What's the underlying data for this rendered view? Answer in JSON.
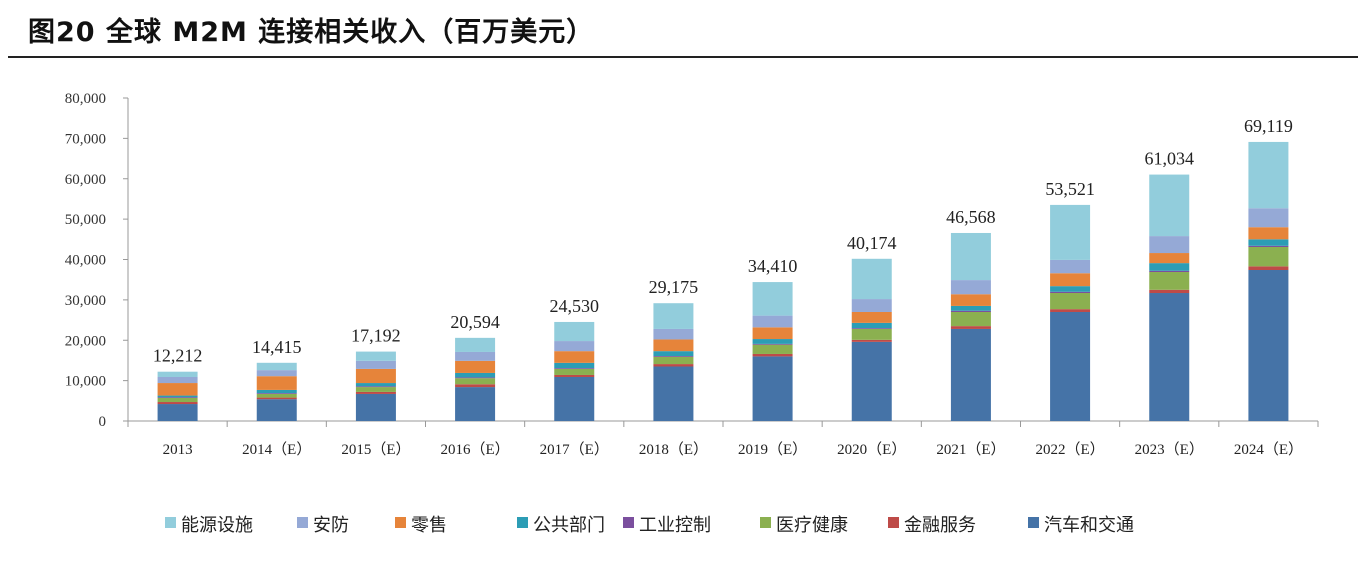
{
  "title": "图20 全球 M2M 连接相关收入（百万美元）",
  "chart_data": {
    "type": "bar",
    "stacked": true,
    "title": "图20 全球 M2M 连接相关收入（百万美元）",
    "xlabel": "",
    "ylabel": "",
    "ylim": [
      0,
      80000
    ],
    "yticks": [
      "0",
      "10,000",
      "20,000",
      "30,000",
      "40,000",
      "50,000",
      "60,000",
      "70,000",
      "80,000"
    ],
    "grid": false,
    "legend_position": "bottom",
    "categories": [
      "2013",
      "2014（E）",
      "2015（E）",
      "2016（E）",
      "2017（E）",
      "2018（E）",
      "2019（E）",
      "2020（E）",
      "2021（E）",
      "2022（E）",
      "2023（E）",
      "2024（E）"
    ],
    "totals": [
      12212,
      14415,
      17192,
      20594,
      24530,
      29175,
      34410,
      40174,
      46568,
      53521,
      61034,
      69119
    ],
    "total_labels": [
      "12,212",
      "14,415",
      "17,192",
      "20,594",
      "24,530",
      "29,175",
      "34,410",
      "40,174",
      "46,568",
      "53,521",
      "61,034",
      "69,119"
    ],
    "series": [
      {
        "name": "汽车和交通",
        "color": "#4573A7",
        "values": [
          4200,
          5400,
          6700,
          8400,
          10900,
          13500,
          16000,
          19600,
          22800,
          27000,
          31700,
          37400
        ]
      },
      {
        "name": "金融服务",
        "color": "#BE4B48",
        "values": [
          500,
          400,
          500,
          700,
          500,
          600,
          600,
          500,
          700,
          700,
          800,
          900
        ]
      },
      {
        "name": "医疗健康",
        "color": "#8BB050",
        "values": [
          1000,
          900,
          1200,
          1500,
          1500,
          1800,
          2300,
          2700,
          3500,
          4000,
          4400,
          4800
        ]
      },
      {
        "name": "工业控制",
        "color": "#7B4F9E",
        "values": [
          200,
          200,
          200,
          200,
          200,
          200,
          200,
          200,
          300,
          300,
          300,
          300
        ]
      },
      {
        "name": "公共部门",
        "color": "#2C9DB5",
        "values": [
          400,
          800,
          800,
          1100,
          1300,
          1200,
          1200,
          1300,
          1200,
          1400,
          1900,
          1600
        ]
      },
      {
        "name": "零售",
        "color": "#E6843A",
        "values": [
          3100,
          3400,
          3500,
          3000,
          2900,
          2900,
          2900,
          2700,
          2900,
          3200,
          2500,
          3000
        ]
      },
      {
        "name": "安防",
        "color": "#95A9D6",
        "values": [
          1500,
          1500,
          2000,
          2200,
          2500,
          2600,
          2900,
          3200,
          3500,
          3300,
          4200,
          4700
        ]
      },
      {
        "name": "能源设施",
        "color": "#92CDDC",
        "values": [
          1312,
          1815,
          2292,
          3494,
          4730,
          6375,
          8310,
          9974,
          11668,
          13621,
          15234,
          16419
        ]
      }
    ]
  }
}
